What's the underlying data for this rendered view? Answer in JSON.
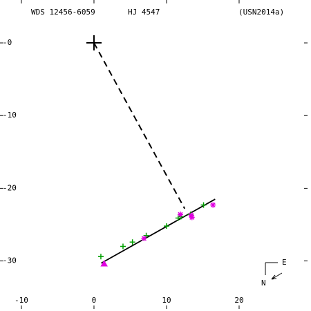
{
  "chart_data": {
    "type": "scatter",
    "title_left": "WDS 12456-6059",
    "title_center": "HJ 4547",
    "title_right": "(USN2014a)",
    "xlim": [
      -12.95,
      29.43
    ],
    "ylim": [
      5.9,
      -36.6
    ],
    "xticks": [
      -10,
      0,
      10,
      20
    ],
    "yticks": [
      {
        "value": 0,
        "label": "-0"
      },
      -10,
      -20,
      -30
    ],
    "primary": {
      "x": 0,
      "y": 0
    },
    "lines": [
      {
        "style": "dashed",
        "x": [
          0,
          12.5
        ],
        "y": [
          0,
          -22.8
        ]
      },
      {
        "style": "solid",
        "x": [
          1.0,
          16.7
        ],
        "y": [
          -30.3,
          -21.5
        ]
      }
    ],
    "series": [
      {
        "marker": "plus",
        "color": "#00a000",
        "x": [
          0.95,
          4.0,
          5.3,
          7.2,
          10.0,
          11.6,
          12.0,
          13.3,
          15.1
        ],
        "y": [
          -29.4,
          -28.0,
          -27.4,
          -26.5,
          -25.2,
          -24.1,
          -23.9,
          -23.6,
          -22.3
        ]
      },
      {
        "marker": "star",
        "color": "#e000e0",
        "x": [
          6.9,
          11.9,
          13.4,
          13.5,
          16.4
        ],
        "y": [
          -26.9,
          -23.6,
          -23.7,
          -24.0,
          -22.3
        ]
      },
      {
        "marker": "triangle",
        "color": "#e000e0",
        "x": [
          1.4
        ],
        "y": [
          -30.4
        ]
      }
    ],
    "compass": {
      "north": "N",
      "east": "E"
    }
  }
}
